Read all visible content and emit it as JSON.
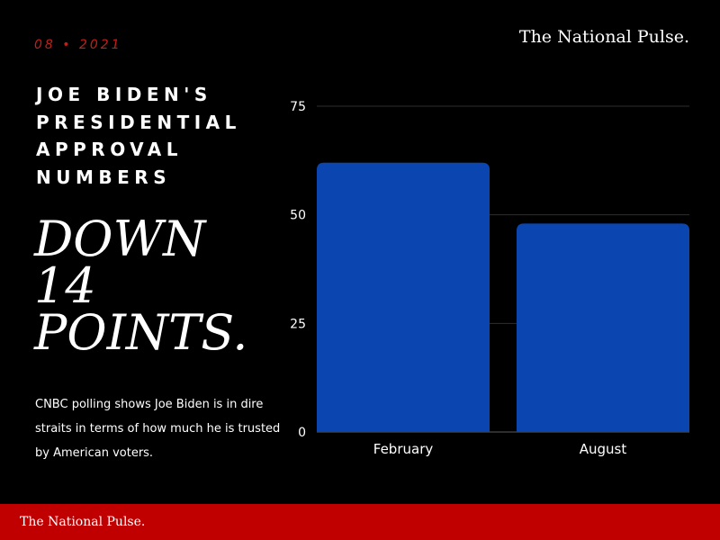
{
  "header": {
    "date": "08 • 2021",
    "brand": "The National Pulse."
  },
  "headline": {
    "lines": [
      "JOE BIDEN'S",
      "PRESIDENTIAL",
      "APPROVAL",
      "NUMBERS"
    ]
  },
  "callout": {
    "lines": [
      "DOWN",
      "14",
      "POINTS."
    ]
  },
  "caption": "CNBC polling shows Joe Biden is in dire straits in terms of how much he is trusted by American voters.",
  "footer": {
    "brand": "The National Pulse."
  },
  "colors": {
    "background": "#000000",
    "bar": "#0a45b0",
    "accent": "#c00000",
    "date": "#c0201a"
  },
  "chart_data": {
    "type": "bar",
    "categories": [
      "February",
      "August"
    ],
    "values": [
      62,
      48
    ],
    "yticks": [
      0,
      25,
      50,
      75
    ],
    "ylim": [
      0,
      75
    ],
    "title": "",
    "xlabel": "",
    "ylabel": "",
    "grid": true
  }
}
